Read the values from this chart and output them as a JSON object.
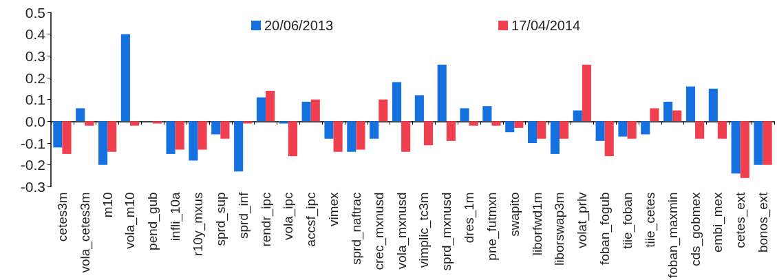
{
  "chart_data": {
    "type": "bar",
    "categories": [
      "cetes3m",
      "vola_cetes3m",
      "m10",
      "vola_m10",
      "pend_gub",
      "infli_10a",
      "r10y_mxus",
      "sprd_sup",
      "sprd_inf",
      "rendr_ipc",
      "vola_ipc",
      "accsf_ipc",
      "vimex",
      "sprd_naftrac",
      "crec_mxnusd",
      "vola_mxnusd",
      "vimplic_tc3m",
      "sprd_mxnusd",
      "dres_1m",
      "pne_futmxn",
      "swapito",
      "liborfwd1m",
      "liborswap3m",
      "volat_prlv",
      "foban_fogub",
      "tiie_foban",
      "tiie_cetes",
      "foban_maxmin",
      "cds_gobmex",
      "embi_mex",
      "cetes_ext",
      "bonos_ext"
    ],
    "series": [
      {
        "name": "20/06/2013",
        "color": "#1570e0",
        "values": [
          -0.12,
          0.06,
          -0.2,
          0.4,
          0,
          -0.15,
          -0.18,
          -0.06,
          -0.23,
          0.11,
          -0.01,
          0.09,
          -0.08,
          -0.14,
          -0.08,
          0.18,
          0.12,
          0.26,
          0.06,
          0.07,
          -0.05,
          -0.1,
          -0.15,
          0.05,
          -0.09,
          -0.07,
          -0.06,
          0.09,
          0.16,
          0.15,
          -0.24,
          -0.2
        ]
      },
      {
        "name": "17/04/2014",
        "color": "#f0404f",
        "values": [
          -0.15,
          -0.02,
          -0.14,
          -0.02,
          -0.01,
          -0.13,
          -0.13,
          -0.08,
          -0.01,
          0.14,
          -0.16,
          0.1,
          -0.14,
          -0.13,
          0.1,
          -0.14,
          -0.11,
          -0.09,
          -0.02,
          -0.02,
          -0.03,
          -0.08,
          -0.08,
          0.26,
          -0.16,
          -0.08,
          0.06,
          0.05,
          -0.08,
          -0.08,
          -0.26,
          -0.2
        ]
      }
    ],
    "ylim": [
      -0.3,
      0.5
    ],
    "yticks": [
      -0.3,
      -0.2,
      -0.1,
      {
        "value": 0,
        "label": "0.0"
      },
      0.1,
      0.2,
      0.3,
      0.4,
      0.5
    ],
    "legend": "top"
  }
}
